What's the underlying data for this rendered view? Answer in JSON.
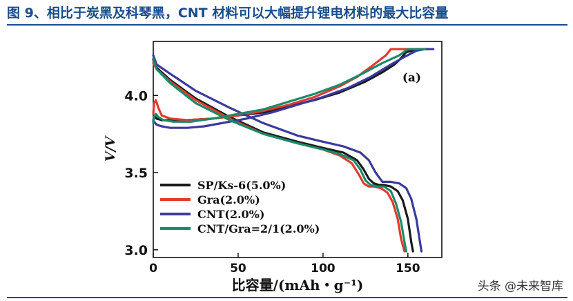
{
  "figure": {
    "title": "图 9、相比于炭黑及科琴黑，CNT 材料可以大幅提升锂电材料的最大比容量"
  },
  "watermark": {
    "text": "头条 @未来智库"
  },
  "chart_data": {
    "type": "line",
    "title": "",
    "panel_label": "(a)",
    "xlabel": "比容量/(mAh・g⁻¹)",
    "ylabel": "V/V",
    "xlim": [
      0,
      170
    ],
    "ylim": [
      2.95,
      4.35
    ],
    "xticks": [
      0,
      50,
      100,
      150
    ],
    "yticks": [
      3.0,
      3.5,
      4.0
    ],
    "ytick_labels": [
      "3.0",
      "3.5",
      "4.0"
    ],
    "legend_position": "lower-left",
    "grid": false,
    "series": [
      {
        "name": "SP/Ks-6(5.0%)",
        "color": "#1a1a1a",
        "charge": {
          "x": [
            0,
            0.5,
            2,
            5,
            10,
            20,
            35,
            50,
            65,
            80,
            95,
            110,
            125,
            135,
            142,
            145,
            149,
            156,
            162
          ],
          "y": [
            3.83,
            3.87,
            3.85,
            3.84,
            3.84,
            3.84,
            3.85,
            3.87,
            3.89,
            3.93,
            3.97,
            4.02,
            4.09,
            4.15,
            4.2,
            4.23,
            4.28,
            4.3,
            4.3
          ]
        },
        "discharge": {
          "x": [
            0,
            2,
            10,
            25,
            45,
            65,
            85,
            100,
            112,
            120,
            124,
            127,
            130,
            133,
            136,
            140,
            144,
            147,
            150,
            152,
            153
          ],
          "y": [
            4.23,
            4.18,
            4.1,
            3.98,
            3.86,
            3.76,
            3.7,
            3.66,
            3.63,
            3.58,
            3.52,
            3.46,
            3.43,
            3.42,
            3.42,
            3.41,
            3.38,
            3.32,
            3.2,
            3.05,
            2.99
          ]
        }
      },
      {
        "name": "Gra(2.0%)",
        "color": "#e23a2e",
        "charge": {
          "x": [
            0,
            0.5,
            1.5,
            3,
            5,
            10,
            20,
            35,
            50,
            65,
            80,
            95,
            110,
            120,
            130,
            137,
            140,
            145,
            155
          ],
          "y": [
            3.88,
            3.95,
            3.97,
            3.92,
            3.87,
            3.85,
            3.84,
            3.85,
            3.87,
            3.9,
            3.94,
            3.99,
            4.06,
            4.12,
            4.2,
            4.26,
            4.3,
            4.3,
            4.3
          ]
        },
        "discharge": {
          "x": [
            0,
            2,
            10,
            25,
            45,
            65,
            85,
            100,
            110,
            117,
            121,
            124,
            127,
            130,
            134,
            138,
            141,
            144,
            146,
            148
          ],
          "y": [
            4.21,
            4.17,
            4.09,
            3.97,
            3.85,
            3.75,
            3.69,
            3.65,
            3.61,
            3.56,
            3.49,
            3.43,
            3.41,
            3.41,
            3.4,
            3.37,
            3.31,
            3.2,
            3.07,
            2.99
          ]
        }
      },
      {
        "name": "CNT(2.0%)",
        "color": "#3a3a9c",
        "charge": {
          "x": [
            0,
            0.5,
            2,
            5,
            10,
            20,
            30,
            40,
            55,
            70,
            85,
            100,
            115,
            128,
            140,
            148,
            155,
            160,
            165
          ],
          "y": [
            3.84,
            3.83,
            3.81,
            3.8,
            3.79,
            3.79,
            3.8,
            3.82,
            3.85,
            3.89,
            3.94,
            3.99,
            4.05,
            4.12,
            4.2,
            4.25,
            4.29,
            4.3,
            4.3
          ]
        },
        "discharge": {
          "x": [
            0,
            2,
            10,
            25,
            45,
            65,
            85,
            100,
            112,
            122,
            127,
            131,
            135,
            140,
            145,
            149,
            152,
            155,
            157,
            158
          ],
          "y": [
            4.26,
            4.2,
            4.14,
            4.03,
            3.92,
            3.82,
            3.74,
            3.7,
            3.67,
            3.63,
            3.58,
            3.5,
            3.44,
            3.44,
            3.43,
            3.4,
            3.33,
            3.2,
            3.06,
            2.99
          ]
        }
      },
      {
        "name": "CNT/Gra=2/1(2.0%)",
        "color": "#1a8a6a",
        "charge": {
          "x": [
            0,
            0.5,
            1.5,
            3,
            6,
            12,
            22,
            35,
            50,
            65,
            80,
            95,
            110,
            123,
            135,
            145,
            150,
            160
          ],
          "y": [
            3.82,
            3.86,
            3.88,
            3.86,
            3.84,
            3.83,
            3.83,
            3.85,
            3.88,
            3.91,
            3.96,
            4.01,
            4.07,
            4.14,
            4.21,
            4.26,
            4.3,
            4.3
          ]
        },
        "discharge": {
          "x": [
            0,
            2,
            10,
            25,
            45,
            65,
            85,
            100,
            110,
            118,
            122,
            125,
            128,
            132,
            136,
            140,
            143,
            146,
            148,
            149
          ],
          "y": [
            4.24,
            4.17,
            4.08,
            3.95,
            3.84,
            3.75,
            3.69,
            3.65,
            3.62,
            3.58,
            3.52,
            3.45,
            3.42,
            3.41,
            3.41,
            3.38,
            3.3,
            3.18,
            3.05,
            2.99
          ]
        }
      }
    ]
  }
}
